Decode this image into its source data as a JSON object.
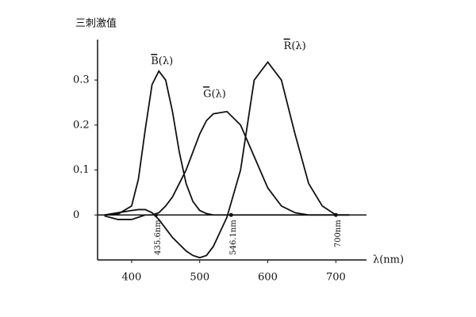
{
  "chart_data": {
    "type": "line",
    "y_label": "三刺激值",
    "x_label": "λ(nm)",
    "x": [
      360,
      380,
      400,
      410,
      420,
      430,
      440,
      450,
      460,
      470,
      480,
      490,
      500,
      510,
      520,
      540,
      560,
      580,
      600,
      620,
      640,
      660,
      680,
      700,
      720
    ],
    "series": [
      {
        "name": "B(λ)",
        "color": "#111111",
        "values": [
          0,
          0.002,
          0.02,
          0.08,
          0.19,
          0.29,
          0.32,
          0.3,
          0.23,
          0.14,
          0.07,
          0.03,
          0.01,
          0.003,
          0,
          0,
          0,
          0,
          0,
          0,
          0,
          0,
          0,
          0,
          0
        ]
      },
      {
        "name": "G(λ)",
        "color": "#111111",
        "values": [
          -0.002,
          -0.01,
          -0.01,
          -0.005,
          0,
          0,
          0.005,
          0.02,
          0.04,
          0.07,
          0.1,
          0.14,
          0.18,
          0.21,
          0.225,
          0.23,
          0.2,
          0.13,
          0.06,
          0.02,
          0.005,
          0,
          0,
          0,
          0
        ]
      },
      {
        "name": "R(λ)",
        "color": "#111111",
        "values": [
          0,
          0.005,
          0.01,
          0.012,
          0.012,
          0.005,
          -0.01,
          -0.03,
          -0.05,
          -0.065,
          -0.08,
          -0.09,
          -0.095,
          -0.09,
          -0.07,
          -0.005,
          0.1,
          0.3,
          0.34,
          0.3,
          0.18,
          0.07,
          0.02,
          0,
          0
        ]
      }
    ],
    "annotations": [
      {
        "text": "435.6nm",
        "x": 435.6
      },
      {
        "text": "546.1nm",
        "x": 546.1
      },
      {
        "text": "700nm",
        "x": 700
      }
    ],
    "xlim": [
      350,
      745
    ],
    "ylim": [
      -0.1,
      0.39
    ],
    "xticks": [
      400,
      500,
      600,
      700
    ],
    "yticks": [
      0,
      0.1,
      0.2,
      0.3
    ]
  }
}
